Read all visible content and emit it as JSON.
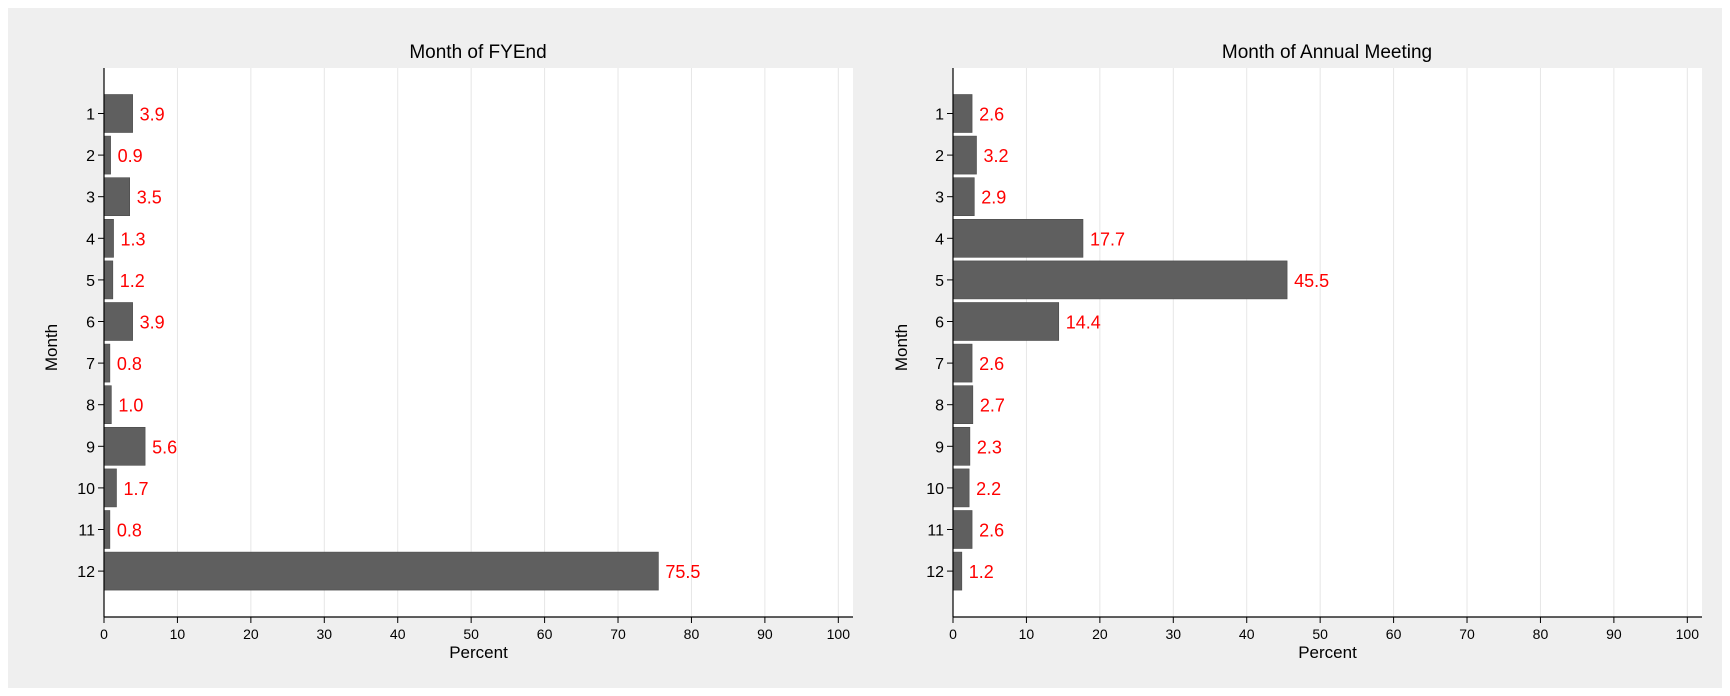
{
  "colors": {
    "background": "#efefef",
    "plot_background": "#ffffff",
    "bar": "#5f5f5f",
    "bar_outline": "#4a4a4a",
    "value_label": "#ff0000",
    "grid": "#e6e6e6",
    "axis": "#000000"
  },
  "chart_data": [
    {
      "type": "bar",
      "orientation": "horizontal",
      "title": "Month of FYEnd",
      "xlabel": "Percent",
      "ylabel": "Month",
      "categories": [
        "1",
        "2",
        "3",
        "4",
        "5",
        "6",
        "7",
        "8",
        "9",
        "10",
        "11",
        "12"
      ],
      "values": [
        3.9,
        0.9,
        3.5,
        1.3,
        1.2,
        3.9,
        0.8,
        1.0,
        5.6,
        1.7,
        0.8,
        75.5
      ],
      "value_labels": [
        "3.9",
        "0.9",
        "3.5",
        "1.3",
        "1.2",
        "3.9",
        "0.8",
        "1.0",
        "5.6",
        "1.7",
        "0.8",
        "75.5"
      ],
      "xlim": [
        0,
        100
      ],
      "xticks": [
        "0",
        "10",
        "20",
        "30",
        "40",
        "50",
        "60",
        "70",
        "80",
        "90",
        "100"
      ],
      "grid": "vertical"
    },
    {
      "type": "bar",
      "orientation": "horizontal",
      "title": "Month of Annual Meeting",
      "xlabel": "Percent",
      "ylabel": "Month",
      "categories": [
        "1",
        "2",
        "3",
        "4",
        "5",
        "6",
        "7",
        "8",
        "9",
        "10",
        "11",
        "12"
      ],
      "values": [
        2.6,
        3.2,
        2.9,
        17.7,
        45.5,
        14.4,
        2.6,
        2.7,
        2.3,
        2.2,
        2.6,
        1.2
      ],
      "value_labels": [
        "2.6",
        "3.2",
        "2.9",
        "17.7",
        "45.5",
        "14.4",
        "2.6",
        "2.7",
        "2.3",
        "2.2",
        "2.6",
        "1.2"
      ],
      "xlim": [
        0,
        100
      ],
      "xticks": [
        "0",
        "10",
        "20",
        "30",
        "40",
        "50",
        "60",
        "70",
        "80",
        "90",
        "100"
      ],
      "grid": "vertical"
    }
  ]
}
